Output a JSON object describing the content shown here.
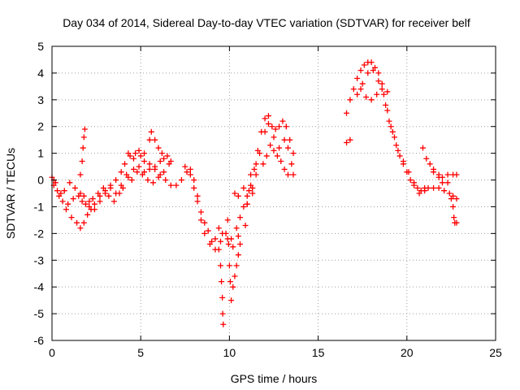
{
  "chart_data": {
    "type": "scatter",
    "title": "Day 034 of 2014, Sidereal Day-to-day VTEC variation (SDTVAR) for receiver belf",
    "xlabel": "GPS time / hours",
    "ylabel": "SDTVAR / TECUs",
    "xlim": [
      0,
      25
    ],
    "ylim": [
      -6,
      5
    ],
    "xticks": [
      0,
      5,
      10,
      15,
      20,
      25
    ],
    "yticks": [
      -6,
      -5,
      -4,
      -3,
      -2,
      -1,
      0,
      1,
      2,
      3,
      4,
      5
    ],
    "grid": true,
    "marker": "+",
    "series": [
      {
        "name": "SDTVAR",
        "color": "#ff0000",
        "points": [
          [
            0.0,
            0.1
          ],
          [
            0.2,
            -0.1
          ],
          [
            0.5,
            -0.5
          ],
          [
            0.8,
            -1.1
          ],
          [
            1.1,
            -1.4
          ],
          [
            1.4,
            -1.6
          ],
          [
            1.6,
            -1.8
          ],
          [
            1.8,
            -1.6
          ],
          [
            2.0,
            -1.3
          ],
          [
            2.2,
            -1.1
          ],
          [
            2.4,
            -0.9
          ],
          [
            2.7,
            -0.6
          ],
          [
            3.0,
            -0.4
          ],
          [
            3.3,
            -0.2
          ],
          [
            3.6,
            0.0
          ],
          [
            3.9,
            0.3
          ],
          [
            4.1,
            0.6
          ],
          [
            4.4,
            0.9
          ],
          [
            4.7,
            1.0
          ],
          [
            5.0,
            0.9
          ],
          [
            5.2,
            0.7
          ],
          [
            5.5,
            0.6
          ],
          [
            5.8,
            0.4
          ],
          [
            6.1,
            0.2
          ],
          [
            6.4,
            0.0
          ],
          [
            6.7,
            -0.2
          ],
          [
            7.0,
            -0.2
          ],
          [
            7.3,
            0.0
          ],
          [
            7.6,
            0.3
          ],
          [
            7.8,
            0.4
          ],
          [
            8.0,
            0.0
          ],
          [
            8.2,
            -0.6
          ],
          [
            8.4,
            -1.2
          ],
          [
            8.6,
            -1.6
          ],
          [
            8.8,
            -1.9
          ],
          [
            9.0,
            -2.3
          ],
          [
            9.2,
            -2.6
          ],
          [
            9.5,
            -2.3
          ],
          [
            9.8,
            -2.0
          ],
          [
            10.1,
            -2.2
          ],
          [
            10.4,
            -1.8
          ],
          [
            10.6,
            -1.4
          ],
          [
            10.8,
            -1.0
          ],
          [
            11.0,
            -0.6
          ],
          [
            11.2,
            -0.2
          ],
          [
            11.4,
            0.4
          ],
          [
            11.6,
            1.1
          ],
          [
            11.8,
            1.8
          ],
          [
            12.0,
            2.3
          ],
          [
            12.2,
            2.1
          ],
          [
            12.5,
            1.6
          ],
          [
            12.8,
            1.2
          ],
          [
            13.1,
            1.5
          ],
          [
            13.3,
            1.2
          ],
          [
            13.5,
            0.6
          ],
          [
            13.6,
            0.2
          ],
          [
            0.1,
            0.0
          ],
          [
            0.3,
            -0.4
          ],
          [
            0.6,
            -0.8
          ],
          [
            0.9,
            -0.9
          ],
          [
            1.2,
            -0.7
          ],
          [
            1.5,
            -0.6
          ],
          [
            1.7,
            -0.8
          ],
          [
            1.9,
            -0.9
          ],
          [
            2.1,
            -0.8
          ],
          [
            2.3,
            -0.7
          ],
          [
            2.6,
            -0.5
          ],
          [
            2.9,
            -0.3
          ],
          [
            3.2,
            -0.6
          ],
          [
            3.5,
            -0.8
          ],
          [
            3.8,
            -0.5
          ],
          [
            4.0,
            -0.3
          ],
          [
            4.3,
            0.1
          ],
          [
            4.6,
            0.4
          ],
          [
            4.9,
            0.5
          ],
          [
            5.2,
            0.3
          ],
          [
            5.5,
            0.4
          ],
          [
            5.8,
            0.5
          ],
          [
            6.1,
            0.7
          ],
          [
            6.3,
            0.8
          ],
          [
            6.6,
            0.6
          ],
          [
            0.1,
            -0.2
          ],
          [
            0.4,
            -0.6
          ],
          [
            0.7,
            -0.4
          ],
          [
            1.0,
            -0.1
          ],
          [
            1.3,
            -0.3
          ],
          [
            1.6,
            -0.5
          ],
          [
            1.8,
            -0.6
          ],
          [
            2.1,
            -1.0
          ],
          [
            2.4,
            -1.1
          ],
          [
            2.7,
            -0.8
          ],
          [
            3.0,
            -0.5
          ],
          [
            3.3,
            -0.3
          ],
          [
            3.6,
            -0.5
          ],
          [
            3.9,
            -0.2
          ],
          [
            4.2,
            0.2
          ],
          [
            4.5,
            0.0
          ],
          [
            4.8,
            0.3
          ],
          [
            5.1,
            0.2
          ],
          [
            5.4,
            0.0
          ],
          [
            5.7,
            -0.1
          ],
          [
            6.0,
            0.1
          ],
          [
            6.3,
            0.3
          ],
          [
            1.6,
            0.2
          ],
          [
            1.7,
            0.7
          ],
          [
            1.75,
            1.2
          ],
          [
            1.8,
            1.6
          ],
          [
            1.85,
            1.9
          ],
          [
            4.3,
            1.0
          ],
          [
            4.6,
            0.8
          ],
          [
            4.9,
            1.1
          ],
          [
            5.2,
            1.0
          ],
          [
            5.5,
            1.5
          ],
          [
            5.6,
            1.8
          ],
          [
            5.8,
            1.5
          ],
          [
            6.0,
            1.2
          ],
          [
            6.2,
            1.0
          ],
          [
            6.5,
            0.9
          ],
          [
            6.7,
            0.7
          ],
          [
            7.5,
            0.5
          ],
          [
            7.8,
            0.2
          ],
          [
            8.0,
            -0.3
          ],
          [
            8.2,
            -0.8
          ],
          [
            8.4,
            -1.5
          ],
          [
            8.6,
            -2.0
          ],
          [
            8.9,
            -2.4
          ],
          [
            9.2,
            -2.2
          ],
          [
            9.4,
            -1.8
          ],
          [
            9.6,
            -2.0
          ],
          [
            9.9,
            -2.2
          ],
          [
            10.2,
            -2.5
          ],
          [
            10.5,
            -2.1
          ],
          [
            9.4,
            -2.6
          ],
          [
            9.5,
            -3.2
          ],
          [
            9.55,
            -3.8
          ],
          [
            9.6,
            -4.4
          ],
          [
            9.62,
            -5.0
          ],
          [
            9.65,
            -5.4
          ],
          [
            9.9,
            -1.5
          ],
          [
            9.95,
            -2.4
          ],
          [
            10.0,
            -3.2
          ],
          [
            10.05,
            -3.8
          ],
          [
            10.1,
            -4.5
          ],
          [
            10.2,
            -4.0
          ],
          [
            10.3,
            -3.6
          ],
          [
            10.4,
            -3.2
          ],
          [
            10.5,
            -2.8
          ],
          [
            10.6,
            -2.4
          ],
          [
            10.9,
            -1.7
          ],
          [
            11.0,
            -0.9
          ],
          [
            11.1,
            -0.4
          ],
          [
            11.2,
            0.2
          ],
          [
            11.3,
            -0.3
          ],
          [
            11.5,
            0.6
          ],
          [
            11.7,
            1.0
          ],
          [
            11.9,
            0.6
          ],
          [
            12.1,
            0.9
          ],
          [
            12.3,
            1.3
          ],
          [
            12.5,
            1.1
          ],
          [
            12.7,
            0.9
          ],
          [
            12.9,
            0.7
          ],
          [
            13.1,
            0.4
          ],
          [
            13.3,
            0.2
          ],
          [
            12.0,
            1.8
          ],
          [
            12.2,
            2.4
          ],
          [
            12.4,
            2.0
          ],
          [
            12.6,
            1.9
          ],
          [
            12.8,
            2.0
          ],
          [
            13.0,
            2.2
          ],
          [
            13.2,
            2.0
          ],
          [
            13.4,
            1.5
          ],
          [
            13.6,
            1.0
          ],
          [
            10.3,
            -0.5
          ],
          [
            10.5,
            -0.6
          ],
          [
            10.8,
            -0.3
          ],
          [
            11.0,
            -0.9
          ],
          [
            11.3,
            -0.5
          ],
          [
            11.5,
            0.2
          ],
          [
            16.6,
            2.5
          ],
          [
            16.8,
            3.0
          ],
          [
            17.0,
            3.4
          ],
          [
            17.2,
            3.8
          ],
          [
            17.4,
            4.1
          ],
          [
            17.6,
            4.3
          ],
          [
            17.8,
            4.4
          ],
          [
            18.0,
            4.4
          ],
          [
            18.2,
            4.2
          ],
          [
            18.4,
            4.0
          ],
          [
            18.6,
            3.4
          ],
          [
            18.8,
            2.8
          ],
          [
            19.0,
            2.2
          ],
          [
            19.2,
            1.8
          ],
          [
            19.4,
            1.3
          ],
          [
            19.6,
            0.9
          ],
          [
            19.8,
            0.6
          ],
          [
            20.0,
            0.3
          ],
          [
            20.2,
            0.0
          ],
          [
            20.4,
            -0.2
          ],
          [
            20.6,
            -0.3
          ],
          [
            20.8,
            -0.4
          ],
          [
            21.0,
            -0.3
          ],
          [
            21.2,
            -0.3
          ],
          [
            21.5,
            -0.3
          ],
          [
            21.8,
            -0.3
          ],
          [
            22.1,
            -0.4
          ],
          [
            22.4,
            -0.5
          ],
          [
            22.6,
            -0.6
          ],
          [
            22.8,
            -0.7
          ],
          [
            16.6,
            1.4
          ],
          [
            16.8,
            1.5
          ],
          [
            17.2,
            3.2
          ],
          [
            17.5,
            3.6
          ],
          [
            17.8,
            4.0
          ],
          [
            18.1,
            4.1
          ],
          [
            18.4,
            3.7
          ],
          [
            18.7,
            3.2
          ],
          [
            18.9,
            2.6
          ],
          [
            19.1,
            2.0
          ],
          [
            19.3,
            1.6
          ],
          [
            19.5,
            1.1
          ],
          [
            19.8,
            0.7
          ],
          [
            20.1,
            0.3
          ],
          [
            20.4,
            -0.1
          ],
          [
            20.7,
            -0.5
          ],
          [
            21.0,
            -0.4
          ],
          [
            17.4,
            3.4
          ],
          [
            17.7,
            3.1
          ],
          [
            18.0,
            3.0
          ],
          [
            18.3,
            3.2
          ],
          [
            18.6,
            3.6
          ],
          [
            18.9,
            3.3
          ],
          [
            20.9,
            1.2
          ],
          [
            21.1,
            0.8
          ],
          [
            21.3,
            0.6
          ],
          [
            21.5,
            0.3
          ],
          [
            21.8,
            0.1
          ],
          [
            22.0,
            -0.1
          ],
          [
            22.3,
            -0.1
          ],
          [
            21.5,
            0.4
          ],
          [
            21.8,
            0.2
          ],
          [
            22.0,
            0.1
          ],
          [
            22.3,
            0.2
          ],
          [
            22.6,
            0.2
          ],
          [
            22.8,
            0.2
          ],
          [
            22.5,
            -0.7
          ],
          [
            22.6,
            -1.0
          ],
          [
            22.65,
            -1.4
          ],
          [
            22.7,
            -1.6
          ],
          [
            22.8,
            -1.6
          ]
        ]
      }
    ]
  }
}
